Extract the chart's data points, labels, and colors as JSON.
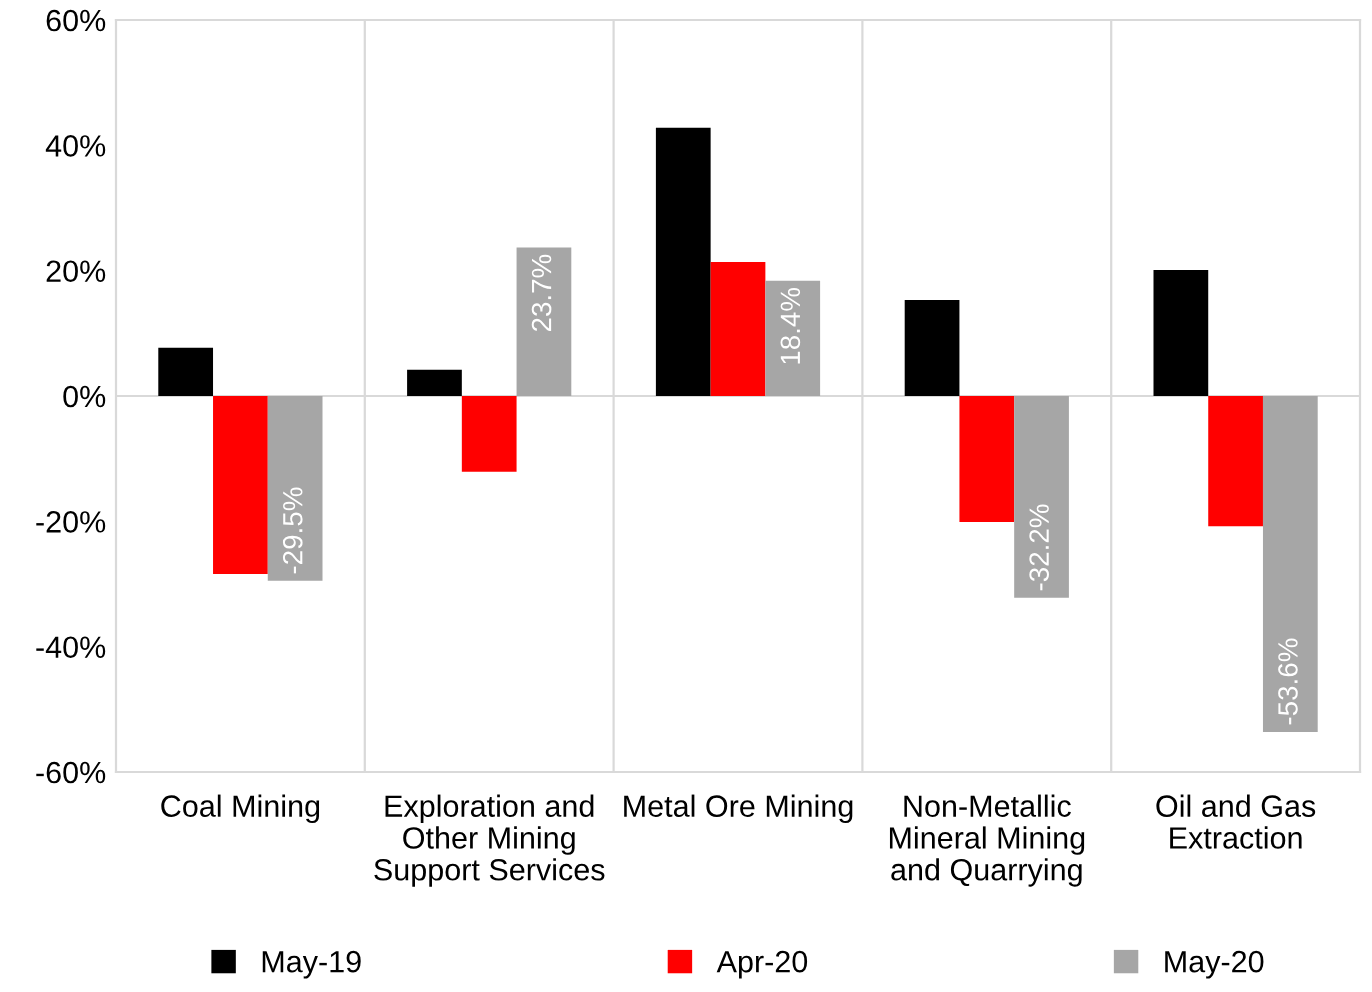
{
  "chart_data": {
    "type": "bar",
    "categories": [
      "Coal Mining",
      "Exploration and Other Mining Support Services",
      "Metal Ore Mining",
      "Non-Metallic Mineral Mining and Quarrying",
      "Oil and Gas Extraction"
    ],
    "series": [
      {
        "name": "May-19",
        "color": "#000000",
        "values": [
          7.7,
          4.2,
          42.8,
          15.3,
          20.1
        ]
      },
      {
        "name": "Apr-20",
        "color": "#ff0000",
        "values": [
          -28.4,
          -12.1,
          21.4,
          -20.1,
          -20.8
        ]
      },
      {
        "name": "May-20",
        "color": "#a6a6a6",
        "values": [
          -29.5,
          23.7,
          18.4,
          -32.2,
          -53.6
        ],
        "value_labels": [
          "-29.5%",
          "23.7%",
          "18.4%",
          "-32.2%",
          "-53.6%"
        ]
      }
    ],
    "ylim": [
      -60,
      60
    ],
    "yticks": [
      {
        "value": -60,
        "label": "-60%"
      },
      {
        "value": -40,
        "label": "-40%"
      },
      {
        "value": -20,
        "label": "-20%"
      },
      {
        "value": 0,
        "label": "0%"
      },
      {
        "value": 20,
        "label": "20%"
      },
      {
        "value": 40,
        "label": "40%"
      },
      {
        "value": 60,
        "label": "60%"
      }
    ],
    "ref_lines": [
      {
        "axis": "y",
        "value": 0,
        "color": "#d9d9d9"
      }
    ],
    "grid": "x",
    "legend": "bottom"
  }
}
